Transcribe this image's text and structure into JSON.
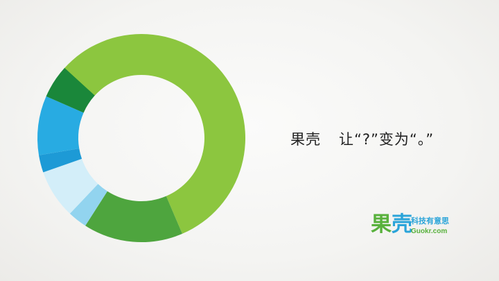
{
  "headline": {
    "brand": "果壳",
    "text": "让“?”变为“。”"
  },
  "logo": {
    "mark_part1": "果",
    "mark_part2": "壳",
    "slogan": "科技有意思",
    "url": "Guokr.com"
  },
  "ring": {
    "segments": [
      {
        "share": 0.569,
        "color": "#8cc63f"
      },
      {
        "share": 0.155,
        "color": "#4ea53e"
      },
      {
        "share": 0.03,
        "color": "#92d4ef"
      },
      {
        "share": 0.076,
        "color": "#d3eef9"
      },
      {
        "share": 0.027,
        "color": "#1d9ad6"
      },
      {
        "share": 0.092,
        "color": "#28abe2"
      },
      {
        "share": 0.052,
        "color": "#1a873a"
      }
    ]
  }
}
